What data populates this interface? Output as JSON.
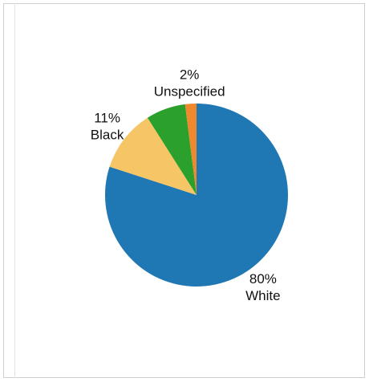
{
  "chart_data": {
    "type": "pie",
    "start_angle_deg": 90,
    "direction": "clockwise",
    "slices": [
      {
        "label": "White",
        "value": 80,
        "value_label": "80%",
        "color": "#1f77b4"
      },
      {
        "label": "Black",
        "value": 11,
        "value_label": "11%",
        "color": "#f5c566"
      },
      {
        "label": "",
        "value": 7,
        "value_label": "",
        "color": "#2ca02c"
      },
      {
        "label": "Unspecified",
        "value": 2,
        "value_label": "2%",
        "color": "#f0882d"
      }
    ]
  }
}
